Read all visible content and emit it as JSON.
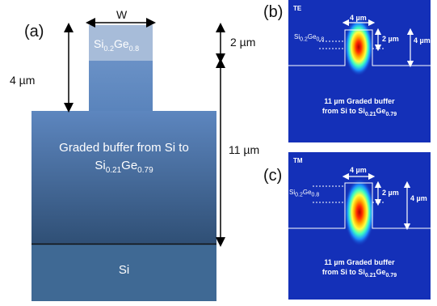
{
  "panel_a": {
    "label": "(a)",
    "width_label": "W",
    "top_layer": {
      "base": "Si",
      "sub1": "0.2",
      "mid": "Ge",
      "sub2": "0.8"
    },
    "height_top": "2 µm",
    "height_ridge": "4 µm",
    "height_buffer": "11 µm",
    "buffer_line1": "Graded buffer from Si to",
    "buffer_line2": {
      "base": "Si",
      "sub1": "0.21",
      "mid": "Ge",
      "sub2": "0.79"
    },
    "substrate": "Si",
    "colors": {
      "top_layer": "#a7bcd9",
      "buffer_top": "#5d86bf",
      "buffer_bottom": "#2f4f75",
      "substrate": "#3f6994"
    }
  },
  "panel_b": {
    "label": "(b)",
    "mode": "TE",
    "width": "4 µm",
    "layer": {
      "base": "Si",
      "sub1": "0.2",
      "mid": "Ge",
      "sub2": "0.8"
    },
    "h2": "2 µm",
    "h4": "4 µm",
    "buffer_line1": "11 µm Graded buffer",
    "buffer_line2": {
      "pre": "from Si to ",
      "base": "Si",
      "sub1": "0.21",
      "mid": "Ge",
      "sub2": "0.79"
    }
  },
  "panel_c": {
    "label": "(c)",
    "mode": "TM",
    "width": "4 µm",
    "layer": {
      "base": "Si",
      "sub1": "0.2",
      "mid": "Ge",
      "sub2": "0.8"
    },
    "h2": "2 µm",
    "h4": "4 µm",
    "buffer_line1": "11 µm Graded buffer",
    "buffer_line2": {
      "pre": "from Si to ",
      "base": "Si",
      "sub1": "0.21",
      "mid": "Ge",
      "sub2": "0.79"
    }
  }
}
